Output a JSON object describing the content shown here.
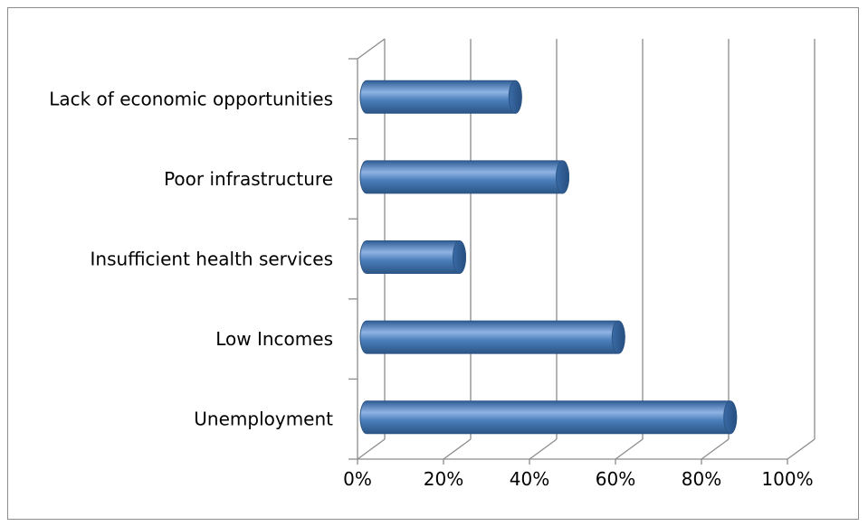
{
  "chart_data": {
    "type": "bar",
    "orientation": "horizontal",
    "style": "3d-cylinder",
    "title": "",
    "xlabel": "",
    "ylabel": "",
    "categories": [
      "Lack of economic opportunities",
      "Poor infrastructure",
      "Insufficient health services",
      "Low Incomes",
      "Unemployment"
    ],
    "values": [
      35,
      46,
      22,
      59,
      85
    ],
    "xlim": [
      0,
      100
    ],
    "x_ticks": [
      0,
      20,
      40,
      60,
      80,
      100
    ],
    "x_tick_labels": [
      "0%",
      "20%",
      "40%",
      "60%",
      "80%",
      "100%"
    ],
    "grid": "vertical",
    "legend": "none",
    "colors": {
      "bar": "#4a7ebb",
      "bar_light": "#8fb3e3",
      "bar_dark": "#2c5585",
      "grid": "#8c8c8c"
    }
  }
}
